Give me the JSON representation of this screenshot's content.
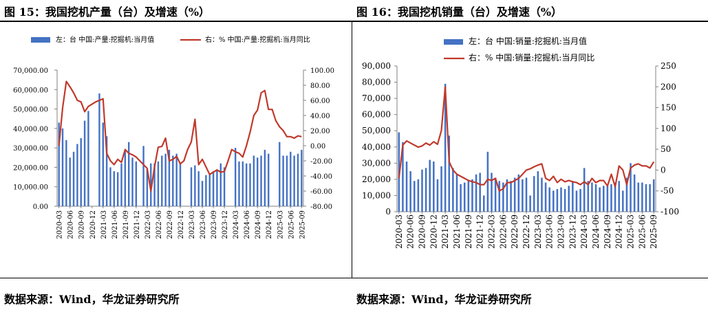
{
  "figures": [
    {
      "title": "图 15：我国挖机产量（台）及增速（%）",
      "source": "数据来源：Wind，华龙证券研究所"
    },
    {
      "title": "图 16：我国挖机销量（台）及增速（%）",
      "source": "数据来源：Wind，华龙证券研究所"
    }
  ],
  "colors": {
    "bar": "#4472C4",
    "line": "#C0392B",
    "axis": "#808080"
  },
  "chart_data": [
    {
      "type": "bar+line",
      "legend_placement": "top",
      "categories": [
        "2020-03",
        "2020-04",
        "2020-05",
        "2020-06",
        "2020-07",
        "2020-08",
        "2020-09",
        "2020-10",
        "2020-11",
        "2020-12",
        "2021-01",
        "2021-02",
        "2021-03",
        "2021-04",
        "2021-05",
        "2021-06",
        "2021-07",
        "2021-08",
        "2021-09",
        "2021-10",
        "2021-11",
        "2021-12",
        "2022-01",
        "2022-02",
        "2022-03",
        "2022-04",
        "2022-05",
        "2022-06",
        "2022-07",
        "2022-08",
        "2022-09",
        "2022-10",
        "2022-11",
        "2022-12",
        "2023-01",
        "2023-02",
        "2023-03",
        "2023-04",
        "2023-05",
        "2023-06",
        "2023-07",
        "2023-08",
        "2023-09",
        "2023-10",
        "2023-11",
        "2023-12",
        "2024-01",
        "2024-02",
        "2024-03",
        "2024-04",
        "2024-05",
        "2024-06",
        "2024-07",
        "2024-08",
        "2024-09",
        "2024-10",
        "2024-11",
        "2024-12",
        "2025-01",
        "2025-02",
        "2025-03",
        "2025-04",
        "2025-05",
        "2025-06",
        "2025-07",
        "2025-08",
        "2025-09"
      ],
      "tick_labels": [
        "2020-03",
        "2020-06",
        "2020-09",
        "2020-12",
        "2021-03",
        "2021-06",
        "2021-09",
        "2021-12",
        "2022-03",
        "2022-06",
        "2022-09",
        "2022-12",
        "2023-03",
        "2023-06",
        "2023-09",
        "2023-12",
        "2024-03",
        "2024-06",
        "2024-09",
        "2024-12",
        "2025-03",
        "2025-06",
        "2025-09"
      ],
      "series": [
        {
          "name": "左：台 中国:产量:挖掘机:当月值",
          "type": "bar",
          "axis": "left",
          "values": [
            43000,
            40000,
            34000,
            25000,
            28000,
            32000,
            35000,
            44000,
            49000,
            null,
            null,
            58000,
            43000,
            36000,
            20000,
            18000,
            17500,
            22000,
            29000,
            33000,
            25000,
            23000,
            null,
            31000,
            19000,
            22000,
            22000,
            23000,
            26000,
            27000,
            29000,
            26000,
            27000,
            22000,
            null,
            null,
            20000,
            21000,
            18000,
            13000,
            16000,
            17000,
            18000,
            18500,
            22000,
            20000,
            null,
            null,
            30000,
            23000,
            23000,
            22000,
            22000,
            26000,
            25000,
            26000,
            29000,
            27000,
            null,
            null,
            33000,
            26000,
            26000,
            28000,
            26000,
            27000,
            29000
          ]
        },
        {
          "name": "右：% 中国:产量:挖掘机:当月同比",
          "type": "line",
          "axis": "right",
          "values": [
            0,
            50,
            85,
            78,
            70,
            60,
            58,
            45,
            52,
            55,
            58,
            60,
            62,
            -10,
            -20,
            -25,
            -18,
            -22,
            -5,
            -10,
            -12,
            -15,
            -20,
            -25,
            -30,
            -60,
            -28,
            -2,
            -1,
            10,
            -20,
            -18,
            -14,
            -24,
            -20,
            -5,
            5,
            35,
            -25,
            -18,
            -28,
            -38,
            -35,
            -32,
            -35,
            -34,
            -20,
            -5,
            -8,
            -10,
            -15,
            0,
            18,
            40,
            47,
            70,
            73,
            48,
            48,
            33,
            25,
            20,
            12,
            12,
            10,
            13,
            12
          ]
        }
      ],
      "y_left": {
        "min": 0,
        "max": 70000,
        "ticks": [
          "0.00",
          "10,000.00",
          "20,000.00",
          "30,000.00",
          "40,000.00",
          "50,000.00",
          "60,000.00",
          "70,000.00"
        ]
      },
      "y_right": {
        "min": -80,
        "max": 100,
        "ticks": [
          "-80.00",
          "-60.00",
          "-40.00",
          "-20.00",
          "0.00",
          "20.00",
          "40.00",
          "60.00",
          "80.00",
          "100.00"
        ]
      }
    },
    {
      "type": "bar+line",
      "legend_placement": "top",
      "categories": [
        "2020-03",
        "2020-04",
        "2020-05",
        "2020-06",
        "2020-07",
        "2020-08",
        "2020-09",
        "2020-10",
        "2020-11",
        "2020-12",
        "2021-01",
        "2021-02",
        "2021-03",
        "2021-04",
        "2021-05",
        "2021-06",
        "2021-07",
        "2021-08",
        "2021-09",
        "2021-10",
        "2021-11",
        "2021-12",
        "2022-01",
        "2022-02",
        "2022-03",
        "2022-04",
        "2022-05",
        "2022-06",
        "2022-07",
        "2022-08",
        "2022-09",
        "2022-10",
        "2022-11",
        "2022-12",
        "2023-01",
        "2023-02",
        "2023-03",
        "2023-04",
        "2023-05",
        "2023-06",
        "2023-07",
        "2023-08",
        "2023-09",
        "2023-10",
        "2023-11",
        "2023-12",
        "2024-01",
        "2024-02",
        "2024-03",
        "2024-04",
        "2024-05",
        "2024-06",
        "2024-07",
        "2024-08",
        "2024-09",
        "2024-10",
        "2024-11",
        "2024-12",
        "2025-01",
        "2025-02",
        "2025-03",
        "2025-04",
        "2025-05",
        "2025-06",
        "2025-07",
        "2025-08",
        "2025-09"
      ],
      "tick_labels": [
        "2020-03",
        "2020-06",
        "2020-09",
        "2020-12",
        "2021-03",
        "2021-06",
        "2021-09",
        "2021-12",
        "2022-03",
        "2022-06",
        "2022-09",
        "2022-12",
        "2023-03",
        "2023-06",
        "2023-09",
        "2023-12",
        "2024-03",
        "2024-06",
        "2024-09",
        "2024-12",
        "2025-03",
        "2025-06",
        "2025-09"
      ],
      "series": [
        {
          "name": "左：台 中国:销量:挖掘机:当月值",
          "type": "bar",
          "axis": "left",
          "values": [
            49000,
            43000,
            31000,
            25000,
            19000,
            20000,
            26000,
            27000,
            32000,
            31000,
            20000,
            28000,
            79000,
            47000,
            27000,
            23000,
            17000,
            18000,
            19000,
            20000,
            23000,
            24000,
            10000,
            37000,
            24000,
            21000,
            19000,
            18000,
            20000,
            19000,
            21000,
            23000,
            20000,
            21000,
            10000,
            22000,
            25000,
            21000,
            18000,
            15000,
            13000,
            14000,
            15000,
            14000,
            16000,
            19000,
            13000,
            14000,
            27000,
            19000,
            18000,
            17000,
            15000,
            16000,
            16000,
            17000,
            18000,
            19000,
            13000,
            21000,
            30000,
            23000,
            18000,
            18000,
            17000,
            17000,
            20000
          ]
        },
        {
          "name": "右：% 中国:销量:挖掘机:当月同比",
          "type": "line",
          "axis": "right",
          "values": [
            -20,
            60,
            70,
            65,
            60,
            55,
            58,
            65,
            60,
            68,
            62,
            95,
            200,
            20,
            0,
            -10,
            -15,
            -20,
            -25,
            -28,
            -30,
            -35,
            -35,
            -22,
            -25,
            -20,
            -50,
            -45,
            -30,
            -30,
            -25,
            -20,
            -10,
            0,
            3,
            8,
            12,
            15,
            -20,
            -25,
            -15,
            -30,
            -22,
            -28,
            -25,
            -28,
            -30,
            -35,
            -28,
            -35,
            -20,
            -30,
            -25,
            -25,
            -38,
            -10,
            -40,
            10,
            0,
            -35,
            5,
            12,
            15,
            10,
            10,
            5,
            20
          ]
        }
      ],
      "y_left": {
        "min": 0,
        "max": 90000,
        "ticks": [
          "0",
          "10,000",
          "20,000",
          "30,000",
          "40,000",
          "50,000",
          "60,000",
          "70,000",
          "80,000",
          "90,000"
        ]
      },
      "y_right": {
        "min": -100,
        "max": 250,
        "ticks": [
          "-100",
          "-50",
          "0",
          "50",
          "100",
          "150",
          "200",
          "250"
        ]
      }
    }
  ]
}
